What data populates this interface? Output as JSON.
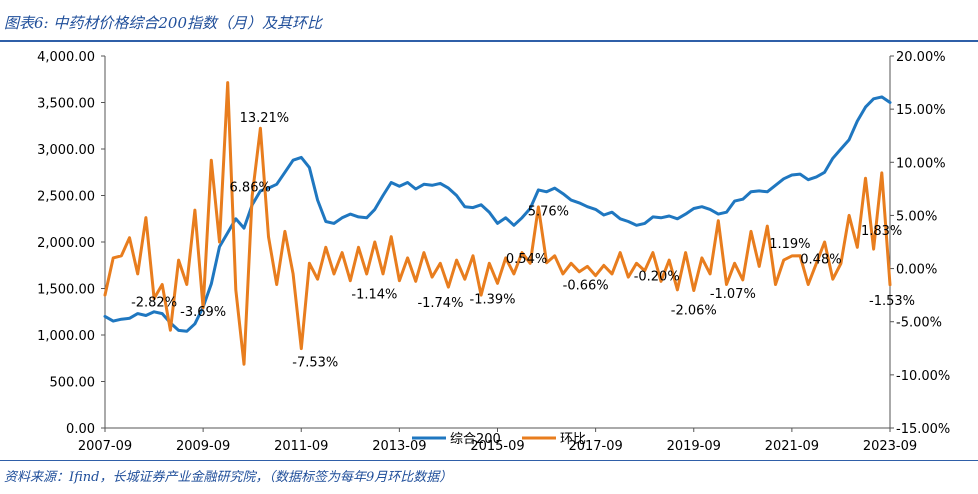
{
  "header": {
    "title": "图表6:  中药材价格综合200指数（月）及其环比"
  },
  "footer": {
    "source": "资料来源：Ifind，长城证券产业金融研究院，（数据标签为每年9月环比数据）"
  },
  "chart_data": {
    "type": "line",
    "title": "图表6:  中药材价格综合200指数（月）及其环比",
    "legend": [
      "综合200",
      "环比"
    ],
    "legend_position": "bottom-center",
    "grid": false,
    "x_ticks": [
      "2007-09",
      "2009-09",
      "2011-09",
      "2013-09",
      "2015-09",
      "2017-09",
      "2019-09",
      "2021-09",
      "2023-09"
    ],
    "y_left": {
      "range": [
        0,
        4000
      ],
      "ticks": [
        "0.00",
        "500.00",
        "1,000.00",
        "1,500.00",
        "2,000.00",
        "2,500.00",
        "3,000.00",
        "3,500.00",
        "4,000.00"
      ]
    },
    "y_right": {
      "range": [
        -15,
        20
      ],
      "ticks": [
        "-15.00%",
        "-10.00%",
        "-5.00%",
        "0.00%",
        "5.00%",
        "10.00%",
        "15.00%",
        "20.00%"
      ]
    },
    "colors": {
      "index": "#1f77c0",
      "mom": "#e87d1e"
    },
    "series": [
      {
        "name": "综合200",
        "axis": "left",
        "points": [
          [
            "2007-09",
            1200
          ],
          [
            "2007-11",
            1150
          ],
          [
            "2008-01",
            1170
          ],
          [
            "2008-03",
            1180
          ],
          [
            "2008-05",
            1230
          ],
          [
            "2008-07",
            1210
          ],
          [
            "2008-09",
            1250
          ],
          [
            "2008-11",
            1230
          ],
          [
            "2009-01",
            1130
          ],
          [
            "2009-03",
            1050
          ],
          [
            "2009-05",
            1040
          ],
          [
            "2009-07",
            1120
          ],
          [
            "2009-09",
            1300
          ],
          [
            "2009-11",
            1550
          ],
          [
            "2010-01",
            1950
          ],
          [
            "2010-03",
            2100
          ],
          [
            "2010-05",
            2250
          ],
          [
            "2010-07",
            2150
          ],
          [
            "2010-09",
            2400
          ],
          [
            "2010-11",
            2550
          ],
          [
            "2011-01",
            2580
          ],
          [
            "2011-03",
            2620
          ],
          [
            "2011-05",
            2750
          ],
          [
            "2011-07",
            2880
          ],
          [
            "2011-09",
            2910
          ],
          [
            "2011-11",
            2800
          ],
          [
            "2012-01",
            2450
          ],
          [
            "2012-03",
            2220
          ],
          [
            "2012-05",
            2200
          ],
          [
            "2012-07",
            2260
          ],
          [
            "2012-09",
            2300
          ],
          [
            "2012-11",
            2270
          ],
          [
            "2013-01",
            2260
          ],
          [
            "2013-03",
            2350
          ],
          [
            "2013-05",
            2500
          ],
          [
            "2013-07",
            2640
          ],
          [
            "2013-09",
            2600
          ],
          [
            "2013-11",
            2640
          ],
          [
            "2014-01",
            2570
          ],
          [
            "2014-03",
            2620
          ],
          [
            "2014-05",
            2610
          ],
          [
            "2014-07",
            2630
          ],
          [
            "2014-09",
            2580
          ],
          [
            "2014-11",
            2500
          ],
          [
            "2015-01",
            2380
          ],
          [
            "2015-03",
            2370
          ],
          [
            "2015-05",
            2400
          ],
          [
            "2015-07",
            2320
          ],
          [
            "2015-09",
            2200
          ],
          [
            "2015-11",
            2260
          ],
          [
            "2016-01",
            2180
          ],
          [
            "2016-03",
            2260
          ],
          [
            "2016-05",
            2360
          ],
          [
            "2016-07",
            2560
          ],
          [
            "2016-09",
            2540
          ],
          [
            "2016-11",
            2580
          ],
          [
            "2017-01",
            2520
          ],
          [
            "2017-03",
            2450
          ],
          [
            "2017-05",
            2420
          ],
          [
            "2017-07",
            2380
          ],
          [
            "2017-09",
            2350
          ],
          [
            "2017-11",
            2290
          ],
          [
            "2018-01",
            2320
          ],
          [
            "2018-03",
            2250
          ],
          [
            "2018-05",
            2220
          ],
          [
            "2018-07",
            2180
          ],
          [
            "2018-09",
            2200
          ],
          [
            "2018-11",
            2270
          ],
          [
            "2019-01",
            2260
          ],
          [
            "2019-03",
            2280
          ],
          [
            "2019-05",
            2250
          ],
          [
            "2019-07",
            2300
          ],
          [
            "2019-09",
            2360
          ],
          [
            "2019-11",
            2380
          ],
          [
            "2020-01",
            2350
          ],
          [
            "2020-03",
            2300
          ],
          [
            "2020-05",
            2320
          ],
          [
            "2020-07",
            2440
          ],
          [
            "2020-09",
            2460
          ],
          [
            "2020-11",
            2540
          ],
          [
            "2021-01",
            2550
          ],
          [
            "2021-03",
            2540
          ],
          [
            "2021-05",
            2610
          ],
          [
            "2021-07",
            2680
          ],
          [
            "2021-09",
            2720
          ],
          [
            "2021-11",
            2730
          ],
          [
            "2022-01",
            2670
          ],
          [
            "2022-03",
            2700
          ],
          [
            "2022-05",
            2750
          ],
          [
            "2022-07",
            2900
          ],
          [
            "2022-09",
            3000
          ],
          [
            "2022-11",
            3100
          ],
          [
            "2023-01",
            3300
          ],
          [
            "2023-03",
            3450
          ],
          [
            "2023-05",
            3540
          ],
          [
            "2023-07",
            3560
          ],
          [
            "2023-09",
            3500
          ]
        ]
      },
      {
        "name": "环比",
        "axis": "right",
        "points": [
          [
            "2007-09",
            -2.5
          ],
          [
            "2007-11",
            1.0
          ],
          [
            "2008-01",
            1.2
          ],
          [
            "2008-03",
            2.9
          ],
          [
            "2008-05",
            -0.5
          ],
          [
            "2008-07",
            4.8
          ],
          [
            "2008-09",
            -2.82
          ],
          [
            "2008-11",
            -1.5
          ],
          [
            "2009-01",
            -5.8
          ],
          [
            "2009-03",
            0.8
          ],
          [
            "2009-05",
            -1.5
          ],
          [
            "2009-07",
            5.5
          ],
          [
            "2009-09",
            -3.69
          ],
          [
            "2009-11",
            10.2
          ],
          [
            "2010-01",
            2.5
          ],
          [
            "2010-03",
            17.5
          ],
          [
            "2010-05",
            -2.0
          ],
          [
            "2010-07",
            -9.0
          ],
          [
            "2010-09",
            6.86
          ],
          [
            "2010-11",
            13.21
          ],
          [
            "2011-01",
            3.0
          ],
          [
            "2011-03",
            -1.5
          ],
          [
            "2011-05",
            3.5
          ],
          [
            "2011-07",
            -0.5
          ],
          [
            "2011-09",
            -7.53
          ],
          [
            "2011-11",
            0.5
          ],
          [
            "2012-01",
            -1.0
          ],
          [
            "2012-03",
            2.0
          ],
          [
            "2012-05",
            -0.5
          ],
          [
            "2012-07",
            1.5
          ],
          [
            "2012-09",
            -1.14
          ],
          [
            "2012-11",
            2.0
          ],
          [
            "2013-01",
            -0.5
          ],
          [
            "2013-03",
            2.5
          ],
          [
            "2013-05",
            -0.5
          ],
          [
            "2013-07",
            3.0
          ],
          [
            "2013-09",
            -1.14
          ],
          [
            "2013-11",
            1.0
          ],
          [
            "2014-01",
            -1.2
          ],
          [
            "2014-03",
            1.5
          ],
          [
            "2014-05",
            -0.8
          ],
          [
            "2014-07",
            0.5
          ],
          [
            "2014-09",
            -1.74
          ],
          [
            "2014-11",
            0.8
          ],
          [
            "2015-01",
            -1.0
          ],
          [
            "2015-03",
            1.2
          ],
          [
            "2015-05",
            -2.5
          ],
          [
            "2015-07",
            0.5
          ],
          [
            "2015-09",
            -1.39
          ],
          [
            "2015-11",
            1.0
          ],
          [
            "2016-01",
            -0.5
          ],
          [
            "2016-03",
            1.5
          ],
          [
            "2016-05",
            0.5
          ],
          [
            "2016-07",
            5.8
          ],
          [
            "2016-09",
            0.54
          ],
          [
            "2016-11",
            1.2
          ],
          [
            "2017-01",
            -0.5
          ],
          [
            "2017-03",
            0.5
          ],
          [
            "2017-05",
            -0.3
          ],
          [
            "2017-07",
            0.2
          ],
          [
            "2017-09",
            -0.66
          ],
          [
            "2017-11",
            0.3
          ],
          [
            "2018-01",
            -0.5
          ],
          [
            "2018-03",
            1.5
          ],
          [
            "2018-05",
            -0.8
          ],
          [
            "2018-07",
            0.5
          ],
          [
            "2018-09",
            -0.2
          ],
          [
            "2018-11",
            1.5
          ],
          [
            "2019-01",
            -1.2
          ],
          [
            "2019-03",
            0.8
          ],
          [
            "2019-05",
            -2.0
          ],
          [
            "2019-07",
            1.5
          ],
          [
            "2019-09",
            -2.06
          ],
          [
            "2019-11",
            1.0
          ],
          [
            "2020-01",
            -0.5
          ],
          [
            "2020-03",
            4.5
          ],
          [
            "2020-05",
            -1.5
          ],
          [
            "2020-07",
            0.5
          ],
          [
            "2020-09",
            -1.07
          ],
          [
            "2020-11",
            3.5
          ],
          [
            "2021-01",
            0.2
          ],
          [
            "2021-03",
            4.0
          ],
          [
            "2021-05",
            -1.5
          ],
          [
            "2021-07",
            0.8
          ],
          [
            "2021-09",
            1.19
          ],
          [
            "2021-11",
            1.2
          ],
          [
            "2022-01",
            -1.5
          ],
          [
            "2022-03",
            0.5
          ],
          [
            "2022-05",
            2.5
          ],
          [
            "2022-07",
            -1.0
          ],
          [
            "2022-09",
            0.48
          ],
          [
            "2022-11",
            5.0
          ],
          [
            "2023-01",
            2.0
          ],
          [
            "2023-03",
            8.5
          ],
          [
            "2023-05",
            1.83
          ],
          [
            "2023-07",
            9.0
          ],
          [
            "2023-09",
            -1.53
          ]
        ]
      }
    ],
    "annotations": [
      {
        "text": "-2.82%",
        "x": "2008-09",
        "y": -2.82
      },
      {
        "text": "-3.69%",
        "x": "2009-09",
        "y": -3.69
      },
      {
        "text": "6.86%",
        "x": "2010-09",
        "y": 6.86
      },
      {
        "text": "13.21%",
        "x": "2010-11",
        "y": 13.21
      },
      {
        "text": "-7.53%",
        "x": "2011-09",
        "y": -7.53
      },
      {
        "text": "-1.14%",
        "x": "2013-09",
        "y": -1.14
      },
      {
        "text": "-1.74%",
        "x": "2014-09",
        "y": -1.74
      },
      {
        "text": "-1.39%",
        "x": "2015-09",
        "y": -1.39
      },
      {
        "text": "0.54%",
        "x": "2016-09",
        "y": 0.54
      },
      {
        "text": "5.76%",
        "x": "2016-07",
        "y": 5.76
      },
      {
        "text": "-0.66%",
        "x": "2017-09",
        "y": -0.66
      },
      {
        "text": "-0.20%",
        "x": "2018-09",
        "y": -0.2
      },
      {
        "text": "-2.06%",
        "x": "2019-09",
        "y": -2.06
      },
      {
        "text": "-1.07%",
        "x": "2020-09",
        "y": -1.07
      },
      {
        "text": "1.19%",
        "x": "2021-09",
        "y": 1.19
      },
      {
        "text": "0.48%",
        "x": "2022-09",
        "y": 0.48
      },
      {
        "text": "1.83%",
        "x": "2023-05",
        "y": 1.83
      },
      {
        "text": "-1.53%",
        "x": "2023-09",
        "y": -1.53
      }
    ]
  }
}
